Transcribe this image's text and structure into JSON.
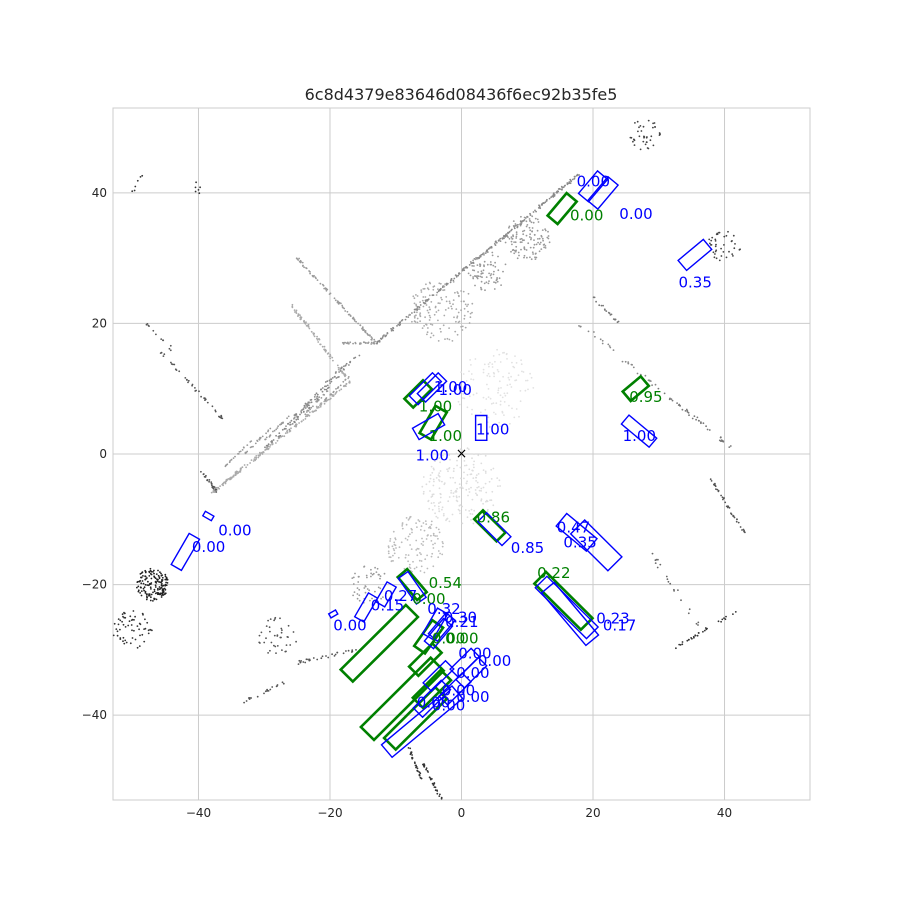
{
  "chart_data": {
    "type": "scatter",
    "title": "6c8d4379e83646d08436f6ec92b35fe5",
    "xlabel": "",
    "ylabel": "",
    "xlim": [
      -53,
      53
    ],
    "ylim": [
      -53,
      53
    ],
    "x_ticks": [
      -40,
      -20,
      0,
      20,
      40
    ],
    "y_ticks": [
      -40,
      -20,
      0,
      20,
      40
    ],
    "x_tick_labels": [
      "−40",
      "−20",
      "0",
      "20",
      "40"
    ],
    "y_tick_labels": [
      "−40",
      "−20",
      "0",
      "20",
      "40"
    ],
    "grid": true,
    "ego_marker": {
      "x": 0,
      "y": 0,
      "symbol": "×"
    },
    "colors": {
      "ground_truth": "#008000",
      "prediction": "#0000ff",
      "points": "#555555",
      "grid": "#cccccc"
    },
    "ground_truth_boxes": [
      {
        "cx": 15.3,
        "cy": 37.6,
        "l": 4.5,
        "w": 2.0,
        "yaw": 50,
        "score": "0.00"
      },
      {
        "cx": -6.6,
        "cy": 9.2,
        "l": 4.0,
        "w": 1.9,
        "yaw": 45,
        "score": "1.00"
      },
      {
        "cx": -4.3,
        "cy": 4.8,
        "l": 4.8,
        "w": 2.0,
        "yaw": 60,
        "score": "1.00"
      },
      {
        "cx": 26.5,
        "cy": 10.0,
        "l": 3.6,
        "w": 1.9,
        "yaw": 40,
        "score": "0.95"
      },
      {
        "cx": 4.3,
        "cy": -11.0,
        "l": 4.8,
        "w": 1.9,
        "yaw": -45,
        "score": "0.86"
      },
      {
        "cx": -7.5,
        "cy": -20.0,
        "l": 4.6,
        "w": 1.9,
        "yaw": -50,
        "score": "0.54"
      },
      {
        "cx": 15.5,
        "cy": -22.5,
        "l": 10.0,
        "w": 2.5,
        "yaw": -45,
        "score": "0.22"
      },
      {
        "cx": -12.5,
        "cy": -29.0,
        "l": 14.0,
        "w": 2.6,
        "yaw": 45,
        "score": ""
      },
      {
        "cx": -5.0,
        "cy": -28.0,
        "l": 4.8,
        "w": 2.0,
        "yaw": 55,
        "score": "0.00"
      },
      {
        "cx": -5.5,
        "cy": -31.5,
        "l": 5.0,
        "w": 2.0,
        "yaw": 45,
        "score": "0.00"
      },
      {
        "cx": -4.5,
        "cy": -36.0,
        "l": 6.0,
        "w": 2.2,
        "yaw": 45,
        "score": "0.00"
      },
      {
        "cx": -9.0,
        "cy": -37.5,
        "l": 15.0,
        "w": 2.8,
        "yaw": 45,
        "score": ""
      },
      {
        "cx": -7.0,
        "cy": -40.5,
        "l": 11.0,
        "w": 2.5,
        "yaw": 45,
        "score": ""
      }
    ],
    "prediction_boxes": [
      {
        "cx": 20.0,
        "cy": 41.0,
        "l": 4.5,
        "w": 2.0,
        "yaw": 50,
        "score": "0.00"
      },
      {
        "cx": 21.5,
        "cy": 40.0,
        "l": 4.8,
        "w": 2.0,
        "yaw": 50,
        "score": "0.00"
      },
      {
        "cx": 35.5,
        "cy": 30.5,
        "l": 5.0,
        "w": 2.0,
        "yaw": 40,
        "score": "0.35"
      },
      {
        "cx": -5.5,
        "cy": 10.0,
        "l": 5.0,
        "w": 1.9,
        "yaw": 45,
        "score": "1.00"
      },
      {
        "cx": -4.5,
        "cy": 10.2,
        "l": 4.5,
        "w": 1.8,
        "yaw": 45,
        "score": "1.00"
      },
      {
        "cx": -5.0,
        "cy": 4.2,
        "l": 4.5,
        "w": 2.0,
        "yaw": 30,
        "score": "1.00"
      },
      {
        "cx": 3.0,
        "cy": 4.0,
        "l": 3.8,
        "w": 1.7,
        "yaw": 90,
        "score": "1.00"
      },
      {
        "cx": 27.0,
        "cy": 3.5,
        "l": 5.5,
        "w": 1.8,
        "yaw": -40,
        "score": "1.00"
      },
      {
        "cx": 5.0,
        "cy": -11.5,
        "l": 5.2,
        "w": 1.9,
        "yaw": -45,
        "score": "0.85"
      },
      {
        "cx": 17.5,
        "cy": -12.0,
        "l": 6.0,
        "w": 2.5,
        "yaw": -40,
        "score": "0.47"
      },
      {
        "cx": 20.5,
        "cy": -14.0,
        "l": 8.0,
        "w": 3.0,
        "yaw": -45,
        "score": "0.35"
      },
      {
        "cx": 16.0,
        "cy": -23.5,
        "l": 11.0,
        "w": 2.5,
        "yaw": -45,
        "score": "0.23"
      },
      {
        "cx": 16.5,
        "cy": -24.5,
        "l": 10.5,
        "w": 2.5,
        "yaw": -50,
        "score": "0.17"
      },
      {
        "cx": -38.5,
        "cy": -9.5,
        "l": 1.5,
        "w": 0.8,
        "yaw": -30,
        "score": "0.00"
      },
      {
        "cx": -42.0,
        "cy": -15.0,
        "l": 5.5,
        "w": 1.8,
        "yaw": 60,
        "score": "0.00"
      },
      {
        "cx": -11.5,
        "cy": -21.5,
        "l": 3.5,
        "w": 1.6,
        "yaw": 60,
        "score": "0.27"
      },
      {
        "cx": -14.5,
        "cy": -23.5,
        "l": 4.2,
        "w": 1.6,
        "yaw": 60,
        "score": "0.15"
      },
      {
        "cx": -19.5,
        "cy": -24.5,
        "l": 1.2,
        "w": 0.7,
        "yaw": 30,
        "score": "0.00"
      },
      {
        "cx": -7.5,
        "cy": -20.5,
        "l": 4.8,
        "w": 1.8,
        "yaw": -55,
        "score": "0.00"
      },
      {
        "cx": -4.0,
        "cy": -26.0,
        "l": 4.5,
        "w": 1.8,
        "yaw": 60,
        "score": "0.32"
      },
      {
        "cx": -3.0,
        "cy": -26.5,
        "l": 4.2,
        "w": 1.8,
        "yaw": 50,
        "score": "0.30"
      },
      {
        "cx": -3.5,
        "cy": -27.5,
        "l": 4.5,
        "w": 1.8,
        "yaw": 50,
        "score": "0.21"
      },
      {
        "cx": 0.5,
        "cy": -32.0,
        "l": 4.5,
        "w": 1.8,
        "yaw": 45,
        "score": "0.00"
      },
      {
        "cx": 1.5,
        "cy": -33.5,
        "l": 4.8,
        "w": 1.8,
        "yaw": 45,
        "score": "0.00"
      },
      {
        "cx": -3.5,
        "cy": -34.0,
        "l": 4.8,
        "w": 1.8,
        "yaw": 45,
        "score": "0.00"
      },
      {
        "cx": -1.0,
        "cy": -36.0,
        "l": 5.0,
        "w": 1.9,
        "yaw": 45,
        "score": "0.00"
      },
      {
        "cx": -4.5,
        "cy": -37.5,
        "l": 6.0,
        "w": 2.0,
        "yaw": 45,
        "score": "0.00"
      },
      {
        "cx": -6.0,
        "cy": -41.0,
        "l": 14.0,
        "w": 2.5,
        "yaw": 40,
        "score": "0.00"
      }
    ],
    "labels": [
      {
        "text": "0.00",
        "x": 17.5,
        "y": 41.0,
        "series": "prediction"
      },
      {
        "text": "0.00",
        "x": 24.0,
        "y": 36.0,
        "series": "prediction"
      },
      {
        "text": "0.00",
        "x": 16.5,
        "y": 35.8,
        "series": "ground_truth"
      },
      {
        "text": "0.35",
        "x": 33.0,
        "y": 25.5,
        "series": "prediction"
      },
      {
        "text": "1.00",
        "x": -4.2,
        "y": 9.5,
        "series": "prediction"
      },
      {
        "text": "1.00",
        "x": -3.5,
        "y": 9.0,
        "series": "prediction"
      },
      {
        "text": "1.00",
        "x": -6.5,
        "y": 6.5,
        "series": "ground_truth"
      },
      {
        "text": "1.00",
        "x": -5.0,
        "y": 2.0,
        "series": "ground_truth"
      },
      {
        "text": "1.00",
        "x": 2.2,
        "y": 3.0,
        "series": "prediction"
      },
      {
        "text": "1.00",
        "x": 24.5,
        "y": 2.0,
        "series": "prediction"
      },
      {
        "text": "0.95",
        "x": 25.5,
        "y": 8.0,
        "series": "ground_truth"
      },
      {
        "text": "1.00",
        "x": -7.0,
        "y": -1.0,
        "series": "prediction"
      },
      {
        "text": "0.86",
        "x": 2.3,
        "y": -10.5,
        "series": "ground_truth"
      },
      {
        "text": "0.85",
        "x": 7.5,
        "y": -15.2,
        "series": "prediction"
      },
      {
        "text": "0.47",
        "x": 14.5,
        "y": -12.0,
        "series": "prediction"
      },
      {
        "text": "0.35",
        "x": 15.5,
        "y": -14.3,
        "series": "prediction"
      },
      {
        "text": "0.22",
        "x": 11.5,
        "y": -19.0,
        "series": "ground_truth"
      },
      {
        "text": "0.23",
        "x": 20.5,
        "y": -26.0,
        "series": "prediction"
      },
      {
        "text": "0.17",
        "x": 21.5,
        "y": -27.0,
        "series": "prediction"
      },
      {
        "text": "0.00",
        "x": -37.0,
        "y": -12.5,
        "series": "prediction"
      },
      {
        "text": "0.00",
        "x": -41.0,
        "y": -15.0,
        "series": "prediction"
      },
      {
        "text": "0.54",
        "x": -5.0,
        "y": -20.5,
        "series": "ground_truth"
      },
      {
        "text": "0.27",
        "x": -11.8,
        "y": -22.5,
        "series": "prediction"
      },
      {
        "text": "0.00",
        "x": -7.5,
        "y": -23.0,
        "series": "ground_truth"
      },
      {
        "text": "0.15",
        "x": -13.8,
        "y": -24.0,
        "series": "prediction"
      },
      {
        "text": "0.00",
        "x": -19.5,
        "y": -27.0,
        "series": "prediction"
      },
      {
        "text": "0.32",
        "x": -5.2,
        "y": -24.5,
        "series": "prediction"
      },
      {
        "text": "0.30",
        "x": -2.7,
        "y": -25.8,
        "series": "prediction"
      },
      {
        "text": "0.21",
        "x": -2.5,
        "y": -26.5,
        "series": "prediction"
      },
      {
        "text": "0.00",
        "x": -4.5,
        "y": -29.0,
        "series": "ground_truth"
      },
      {
        "text": "0.00",
        "x": -2.5,
        "y": -29.0,
        "series": "ground_truth"
      },
      {
        "text": "0.00",
        "x": -0.5,
        "y": -31.3,
        "series": "prediction"
      },
      {
        "text": "0.00",
        "x": 2.5,
        "y": -32.5,
        "series": "prediction"
      },
      {
        "text": "0.00",
        "x": -0.8,
        "y": -34.3,
        "series": "prediction"
      },
      {
        "text": "0.00",
        "x": -3.0,
        "y": -37.0,
        "series": "prediction"
      },
      {
        "text": "0.00",
        "x": -0.8,
        "y": -38.0,
        "series": "prediction"
      },
      {
        "text": "0.00",
        "x": -6.8,
        "y": -38.8,
        "series": "prediction"
      },
      {
        "text": "0.00",
        "x": -4.5,
        "y": -39.3,
        "series": "prediction"
      }
    ]
  }
}
